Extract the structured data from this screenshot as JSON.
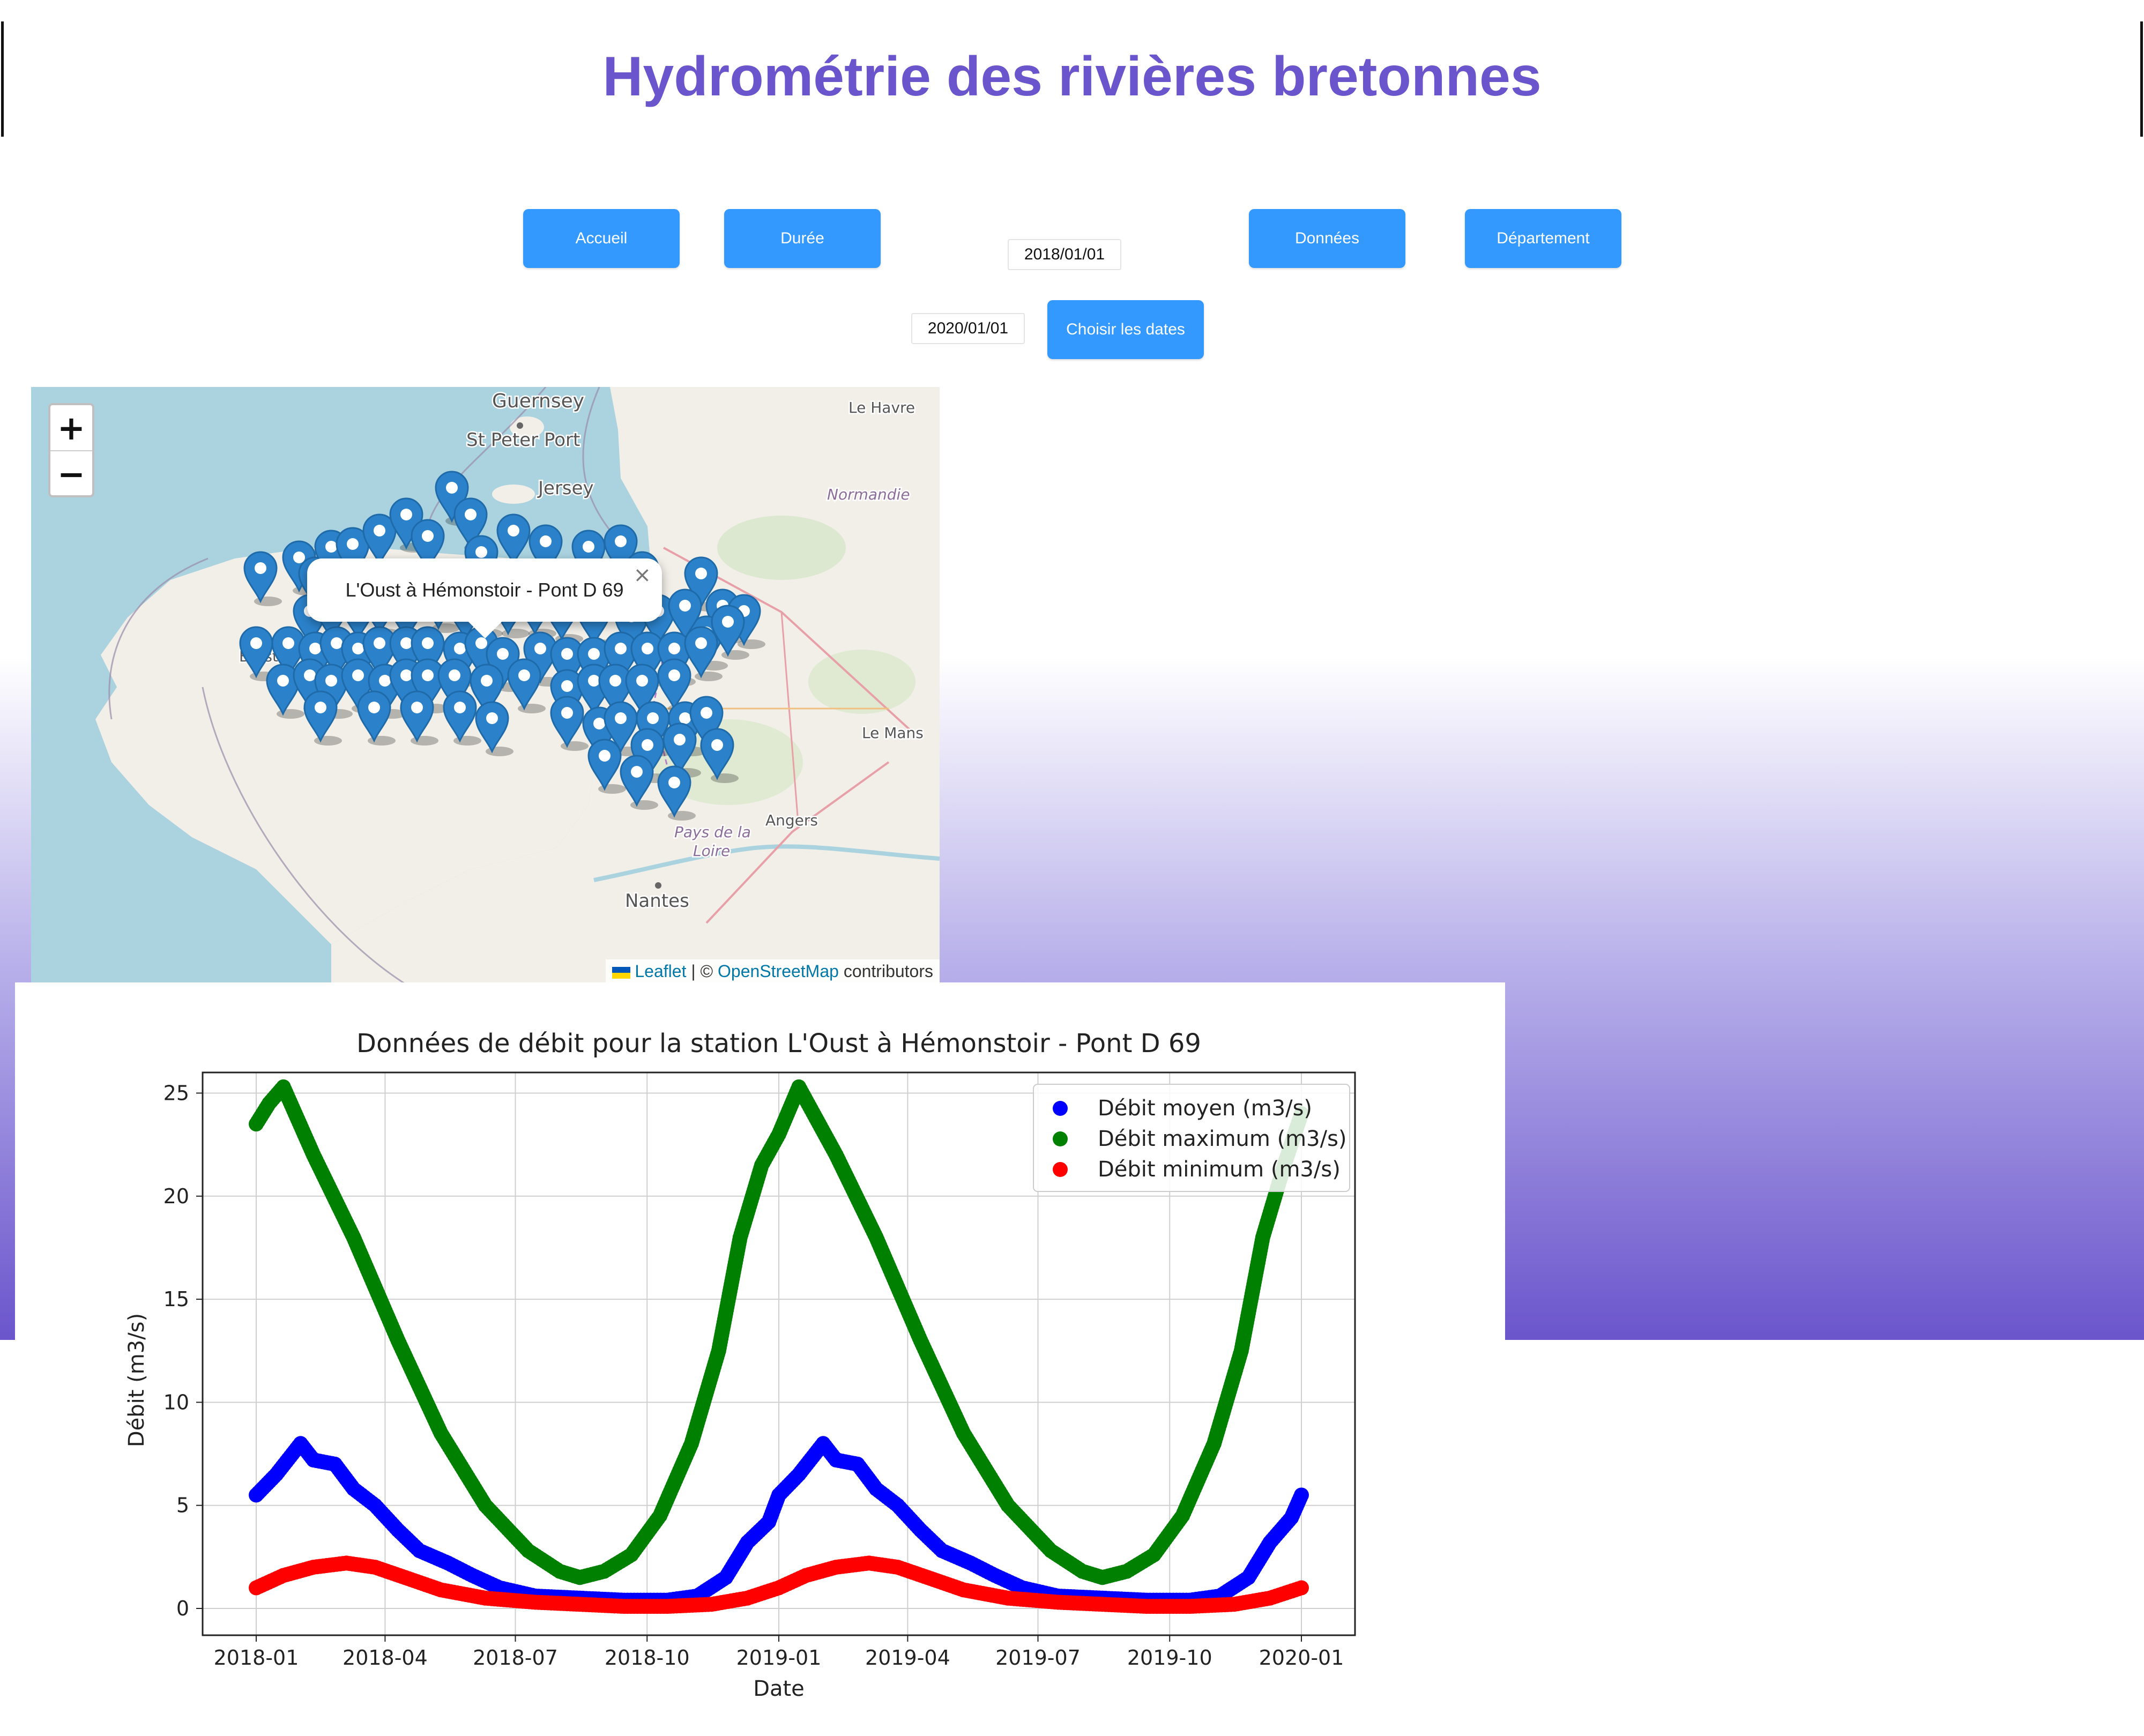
{
  "header": {
    "title": "Hydrométrie des rivières bretonnes"
  },
  "nav": {
    "accueil": "Accueil",
    "duree": "Durée",
    "donnees": "Données",
    "departement": "Département",
    "choisir": "Choisir les dates"
  },
  "dates": {
    "start": "2018/01/01",
    "end": "2020/01/01"
  },
  "map": {
    "zoom_in": "+",
    "zoom_out": "−",
    "popup_text": "L'Oust à Hémonstoir - Pont D 69",
    "popup_close": "×",
    "places": [
      "Guernsey",
      "St Peter Port",
      "Jersey",
      "Le Havre",
      "Normandie",
      "Brest",
      "Le Mans",
      "Angers",
      "Pays de la",
      "Loire",
      "Nantes"
    ],
    "attribution": {
      "leaflet": "Leaflet",
      "sep": " | © ",
      "osm": "OpenStreetMap",
      "contrib": " contributors"
    },
    "colors": {
      "sea": "#aad3df",
      "land": "#f2efe9",
      "marker": "#2b82cb"
    }
  },
  "chart_data": {
    "type": "scatter",
    "title": "Données de débit pour la station L'Oust à Hémonstoir - Pont D 69",
    "xlabel": "Date",
    "ylabel": "Débit (m3/s)",
    "xlim": [
      "2018-01-01",
      "2020-01-01"
    ],
    "ylim": [
      0,
      26
    ],
    "x_ticks": [
      "2018-01",
      "2018-04",
      "2018-07",
      "2018-10",
      "2019-01",
      "2019-04",
      "2019-07",
      "2019-10",
      "2020-01"
    ],
    "y_ticks": [
      0,
      5,
      10,
      15,
      20,
      25
    ],
    "grid": true,
    "legend_position": "top-right",
    "series": [
      {
        "name": "Débit moyen (m3/s)",
        "color": "#0000ff",
        "x": [
          "2018-01-01",
          "2018-01-15",
          "2018-02-01",
          "2018-02-10",
          "2018-02-25",
          "2018-03-10",
          "2018-03-25",
          "2018-04-10",
          "2018-04-25",
          "2018-05-15",
          "2018-06-01",
          "2018-06-20",
          "2018-07-15",
          "2018-08-15",
          "2018-09-15",
          "2018-10-15",
          "2018-11-05",
          "2018-11-25",
          "2018-12-10",
          "2018-12-25",
          "2019-01-01",
          "2019-01-15",
          "2019-02-01",
          "2019-02-10",
          "2019-02-25",
          "2019-03-10",
          "2019-03-25",
          "2019-04-10",
          "2019-04-25",
          "2019-05-15",
          "2019-06-01",
          "2019-06-20",
          "2019-07-15",
          "2019-08-15",
          "2019-09-15",
          "2019-10-15",
          "2019-11-05",
          "2019-11-25",
          "2019-12-10",
          "2019-12-25",
          "2020-01-01"
        ],
        "y": [
          5.5,
          6.5,
          8.0,
          7.2,
          7.0,
          5.8,
          5.0,
          3.8,
          2.8,
          2.2,
          1.6,
          1.0,
          0.6,
          0.5,
          0.4,
          0.4,
          0.6,
          1.5,
          3.2,
          4.2,
          5.5,
          6.5,
          8.0,
          7.2,
          7.0,
          5.8,
          5.0,
          3.8,
          2.8,
          2.2,
          1.6,
          1.0,
          0.6,
          0.5,
          0.4,
          0.4,
          0.6,
          1.5,
          3.2,
          4.4,
          5.5
        ]
      },
      {
        "name": "Débit maximum (m3/s)",
        "color": "#008000",
        "x": [
          "2018-01-01",
          "2018-01-10",
          "2018-01-20",
          "2018-02-10",
          "2018-03-10",
          "2018-04-10",
          "2018-05-10",
          "2018-06-10",
          "2018-07-10",
          "2018-08-01",
          "2018-08-15",
          "2018-09-01",
          "2018-09-20",
          "2018-10-10",
          "2018-11-01",
          "2018-11-20",
          "2018-12-05",
          "2018-12-20",
          "2019-01-01",
          "2019-01-15",
          "2019-02-10",
          "2019-03-10",
          "2019-04-10",
          "2019-05-10",
          "2019-06-10",
          "2019-07-10",
          "2019-08-01",
          "2019-08-15",
          "2019-09-01",
          "2019-09-20",
          "2019-10-10",
          "2019-11-01",
          "2019-11-20",
          "2019-12-05",
          "2019-12-20",
          "2020-01-01"
        ],
        "y": [
          23.5,
          24.5,
          25.3,
          22.0,
          18.0,
          13.0,
          8.5,
          5.0,
          2.8,
          1.8,
          1.5,
          1.8,
          2.6,
          4.5,
          8.0,
          12.5,
          18.0,
          21.5,
          23.0,
          25.3,
          22.0,
          18.0,
          13.0,
          8.5,
          5.0,
          2.8,
          1.8,
          1.5,
          1.8,
          2.6,
          4.5,
          8.0,
          12.5,
          18.0,
          21.5,
          24.0
        ]
      },
      {
        "name": "Débit minimum (m3/s)",
        "color": "#ff0000",
        "x": [
          "2018-01-01",
          "2018-01-20",
          "2018-02-10",
          "2018-03-05",
          "2018-03-25",
          "2018-04-15",
          "2018-05-10",
          "2018-06-10",
          "2018-07-15",
          "2018-08-15",
          "2018-09-15",
          "2018-10-15",
          "2018-11-15",
          "2018-12-10",
          "2019-01-01",
          "2019-01-20",
          "2019-02-10",
          "2019-03-05",
          "2019-03-25",
          "2019-04-15",
          "2019-05-10",
          "2019-06-10",
          "2019-07-15",
          "2019-08-15",
          "2019-09-15",
          "2019-10-15",
          "2019-11-15",
          "2019-12-10",
          "2020-01-01"
        ],
        "y": [
          1.0,
          1.6,
          2.0,
          2.2,
          2.0,
          1.5,
          0.9,
          0.5,
          0.3,
          0.2,
          0.1,
          0.1,
          0.2,
          0.5,
          1.0,
          1.6,
          2.0,
          2.2,
          2.0,
          1.5,
          0.9,
          0.5,
          0.3,
          0.2,
          0.1,
          0.1,
          0.2,
          0.5,
          1.0
        ]
      }
    ]
  }
}
